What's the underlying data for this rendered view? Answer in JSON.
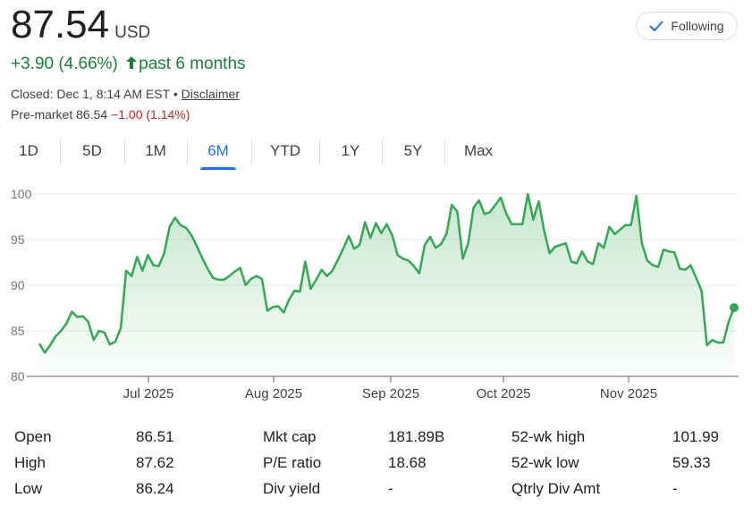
{
  "quote": {
    "price": "87.54",
    "currency": "USD",
    "change": "+3.90 (4.66%)",
    "period": "past 6 months",
    "closed_label": "Closed: Dec 1, 8:14 AM EST",
    "separator": " • ",
    "disclaimer": "Disclaimer",
    "premarket_label": "Pre-market 86.54",
    "premarket_change": "−1.00 (1.14%)"
  },
  "follow_button": {
    "label": "Following",
    "icon": "checkmark-icon"
  },
  "tabs": [
    "1D",
    "5D",
    "1M",
    "6M",
    "YTD",
    "1Y",
    "5Y",
    "Max"
  ],
  "active_tab": "6M",
  "colors": {
    "up": "#188038",
    "down": "#c5221f",
    "accent": "#1a73e8",
    "line": "#34a853"
  },
  "chart_data": {
    "type": "area",
    "ylim": [
      80,
      100
    ],
    "yticks": [
      "100",
      "95",
      "90",
      "85",
      "80"
    ],
    "x_tick_labels": [
      "Jul 2025",
      "Aug 2025",
      "Sep 2025",
      "Oct 2025",
      "Nov 2025"
    ],
    "grid": true,
    "values": [
      83.6,
      82.6,
      83.4,
      84.4,
      85.0,
      85.8,
      87.1,
      86.5,
      86.6,
      86.0,
      84.0,
      85.0,
      84.8,
      83.5,
      83.8,
      85.3,
      91.6,
      91.0,
      93.1,
      91.6,
      93.3,
      92.2,
      92.1,
      93.5,
      96.4,
      97.4,
      96.6,
      96.3,
      95.5,
      94.3,
      93.0,
      91.8,
      90.8,
      90.6,
      90.6,
      91.0,
      91.5,
      91.9,
      90.0,
      90.7,
      91.0,
      90.7,
      87.2,
      87.6,
      87.7,
      87.0,
      88.4,
      89.4,
      89.3,
      92.6,
      89.6,
      90.6,
      91.7,
      91.0,
      91.6,
      92.8,
      94.0,
      95.4,
      94.0,
      94.4,
      96.9,
      95.2,
      96.8,
      95.7,
      96.7,
      95.5,
      93.3,
      92.9,
      92.7,
      92.1,
      91.3,
      94.4,
      95.3,
      94.1,
      94.5,
      95.6,
      98.8,
      98.1,
      92.9,
      94.6,
      98.5,
      99.3,
      97.8,
      98.0,
      98.8,
      99.6,
      97.9,
      96.7,
      96.7,
      96.7,
      100.0,
      97.2,
      99.2,
      96.0,
      93.5,
      94.2,
      94.4,
      94.6,
      92.6,
      92.4,
      93.7,
      92.6,
      92.3,
      94.6,
      94.1,
      96.4,
      95.6,
      96.1,
      96.6,
      96.6,
      99.8,
      94.6,
      92.7,
      92.2,
      92.0,
      93.9,
      93.7,
      93.6,
      91.8,
      91.7,
      92.2,
      90.8,
      89.4,
      83.4,
      84.0,
      83.7,
      83.7,
      86.0,
      87.54
    ]
  },
  "stats": [
    [
      {
        "label": "Open",
        "value": "86.51"
      },
      {
        "label": "Mkt cap",
        "value": "181.89B"
      },
      {
        "label": "52-wk high",
        "value": "101.99"
      }
    ],
    [
      {
        "label": "High",
        "value": "87.62"
      },
      {
        "label": "P/E ratio",
        "value": "18.68"
      },
      {
        "label": "52-wk low",
        "value": "59.33"
      }
    ],
    [
      {
        "label": "Low",
        "value": "86.24"
      },
      {
        "label": "Div yield",
        "value": "-"
      },
      {
        "label": "Qtrly Div Amt",
        "value": "-"
      }
    ]
  ]
}
